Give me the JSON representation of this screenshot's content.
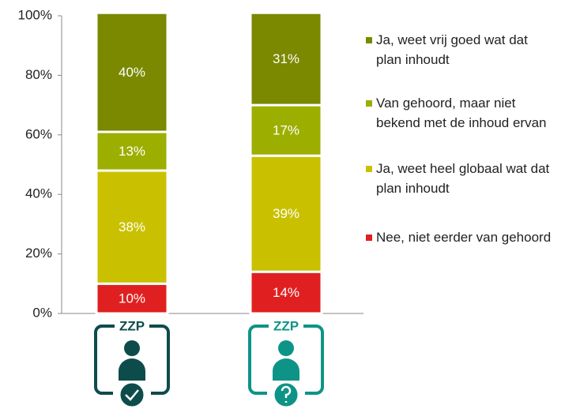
{
  "chart_data": {
    "type": "stacked_bar",
    "categories": [
      "ZZP",
      "ZZP"
    ],
    "series": [
      {
        "name": "Nee, niet eerder van gehoord",
        "color": "#e02020",
        "values": [
          10,
          14
        ],
        "value_labels": [
          "10%",
          "14%"
        ]
      },
      {
        "name": "Ja, weet heel globaal wat dat plan inhoudt",
        "color": "#c9c100",
        "values": [
          38,
          39
        ],
        "value_labels": [
          "38%",
          "39%"
        ]
      },
      {
        "name": "Van gehoord, maar niet bekend met de inhoud ervan",
        "color": "#9cae00",
        "values": [
          13,
          17
        ],
        "value_labels": [
          "13%",
          "17%"
        ]
      },
      {
        "name": "Ja, weet vrij goed wat dat plan inhoudt",
        "color": "#7a8900",
        "values": [
          40,
          31
        ],
        "value_labels": [
          "40%",
          "31%"
        ]
      }
    ],
    "ylim": [
      0,
      100
    ],
    "yticks": [
      {
        "value": 0,
        "label": "0%"
      },
      {
        "value": 20,
        "label": "20%"
      },
      {
        "value": 40,
        "label": "40%"
      },
      {
        "value": 60,
        "label": "60%"
      },
      {
        "value": 80,
        "label": "80%"
      },
      {
        "value": 100,
        "label": "100%"
      }
    ],
    "legend": "right"
  }
}
